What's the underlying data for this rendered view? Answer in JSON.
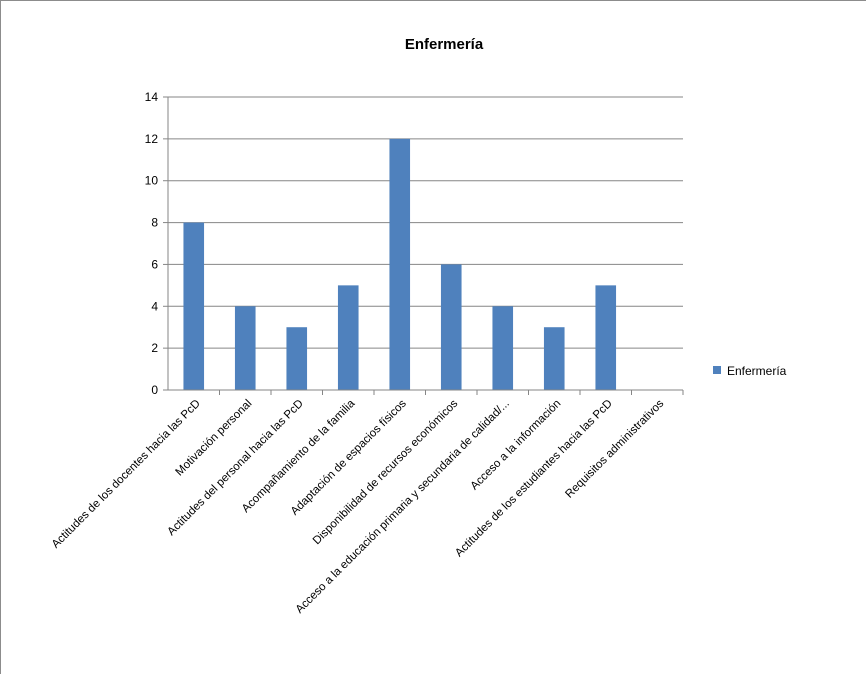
{
  "chart_data": {
    "type": "bar",
    "title": "Enfermería",
    "xlabel": "",
    "ylabel": "",
    "ylim": [
      0,
      14
    ],
    "yticks": [
      "0",
      "2",
      "4",
      "6",
      "8",
      "10",
      "12",
      "14"
    ],
    "grid": true,
    "legend_position": "right",
    "categories": [
      "Actitudes de los docentes hacia las PcD",
      "Motivación personal",
      "Actitudes del personal hacia las PcD",
      "Acompañamiento de la familia",
      "Adaptación de espacios físicos",
      "Disponibilidad de recursos económicos",
      "Acceso a la educación primaria y secundaria de calidad/...",
      "Acceso a la información",
      "Actitudes de los estudiantes hacia las PcD",
      "Requisitos administrativos"
    ],
    "series": [
      {
        "name": "Enfermería",
        "values": [
          8,
          4,
          3,
          5,
          12,
          6,
          4,
          3,
          5,
          0
        ],
        "color": "#4F81BD"
      }
    ]
  }
}
